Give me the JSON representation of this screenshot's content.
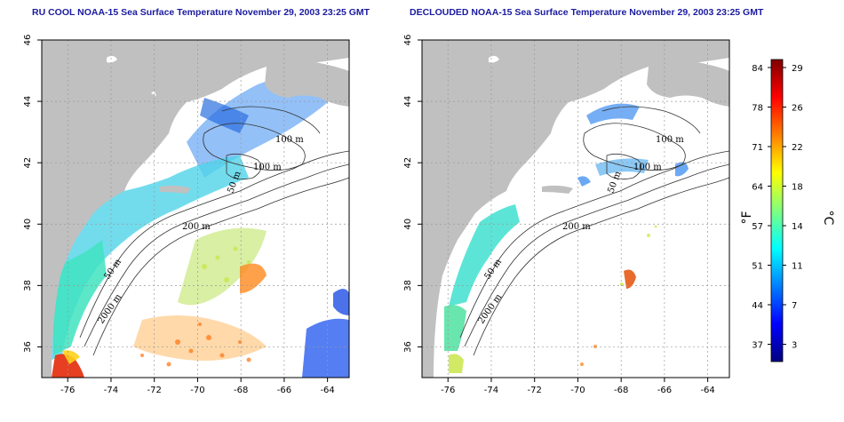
{
  "titles": {
    "left": "RU COOL NOAA-15 Sea Surface Temperature November 29, 2003 23:25 GMT",
    "right": "DECLOUDED NOAA-15 Sea Surface Temperature November 29, 2003 23:25 GMT"
  },
  "axes": {
    "lon_ticks": [
      "-76",
      "-74",
      "-72",
      "-70",
      "-68",
      "-66",
      "-64"
    ],
    "lat_ticks": [
      "36",
      "38",
      "40",
      "42",
      "44",
      "46"
    ],
    "lon_values": [
      -76,
      -74,
      -72,
      -70,
      -68,
      -66,
      -64
    ],
    "lat_values": [
      36,
      38,
      40,
      42,
      44,
      46
    ],
    "lon_range": [
      -77.2,
      -63
    ],
    "lat_range": [
      35,
      46
    ],
    "grid": "dotted"
  },
  "contour_labels": {
    "left": [
      "100 m",
      "100 m",
      "50 m",
      "200 m",
      "50 m",
      "2000 m"
    ],
    "right": [
      "100 m",
      "100 m",
      "50 m",
      "200 m",
      "50 m",
      "2000 m"
    ]
  },
  "colorbar": {
    "fahrenheit_ticks": [
      "84",
      "78",
      "71",
      "64",
      "57",
      "51",
      "44",
      "37"
    ],
    "celsius_ticks": [
      "29",
      "26",
      "22",
      "18",
      "14",
      "11",
      "7",
      "3"
    ],
    "fahrenheit_unit": "°F",
    "celsius_unit": "°C",
    "colors": [
      "#00007f",
      "#0000ff",
      "#007fff",
      "#00ffff",
      "#7fff7f",
      "#ffff00",
      "#ff7f00",
      "#ff0000",
      "#7f0000"
    ]
  },
  "colors": {
    "land": "#c0c0c0",
    "ocean_cloud": "#ffffff",
    "title": "#1a1aa0"
  }
}
